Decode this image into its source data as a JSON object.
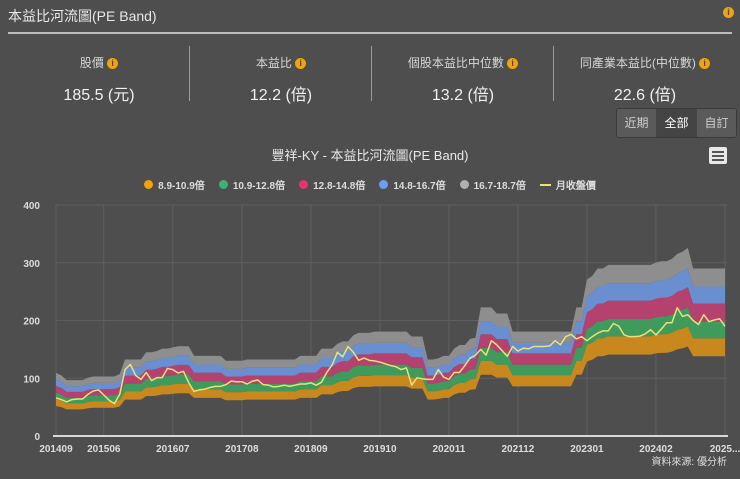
{
  "header": {
    "title": "本益比河流圖(PE Band)",
    "info_icon": "info-icon"
  },
  "stats": [
    {
      "label": "股價",
      "value": "185.5 (元)"
    },
    {
      "label": "本益比",
      "value": "12.2 (倍)"
    },
    {
      "label": "個股本益比中位數",
      "value": "13.2 (倍)"
    },
    {
      "label": "同產業本益比(中位數)",
      "value": "22.6 (倍)"
    }
  ],
  "range_buttons": [
    {
      "label": "近期"
    },
    {
      "label": "全部",
      "active": true
    },
    {
      "label": "自訂"
    }
  ],
  "colors": {
    "accent": "#f0a30a",
    "line": "#e8e27a",
    "bands": [
      "#c8881e",
      "#3f9a5c",
      "#b5416e",
      "#6a8fd0",
      "#8e8e8e"
    ],
    "legend_dots": [
      "#f0a30a",
      "#3cb371",
      "#e8336f",
      "#6f9cf0",
      "#b0b0b0"
    ]
  },
  "chart_data": {
    "type": "area",
    "title": "豐祥-KY - 本益比河流圖(PE Band)",
    "legend": [
      "8.9-10.9倍",
      "10.9-12.8倍",
      "12.8-14.8倍",
      "14.8-16.7倍",
      "16.7-18.7倍",
      "月收盤價"
    ],
    "legend_position": "top",
    "pe_multiples": [
      8.9,
      10.9,
      12.8,
      14.8,
      16.7,
      18.7
    ],
    "x_start": "201409",
    "x_end": "202503",
    "x_frequency": "monthly",
    "x_ticks": [
      "201409",
      "201506",
      "201607",
      "201708",
      "201809",
      "201910",
      "202011",
      "202112",
      "202301",
      "202402",
      "2025..."
    ],
    "y_ticks": [
      "0",
      "100",
      "200",
      "300",
      "400"
    ],
    "ylim": [
      0,
      400
    ],
    "grid": true,
    "pe_8_9x_price": [
      52,
      50,
      46,
      46,
      46,
      46,
      48,
      49,
      49,
      49,
      49,
      49,
      51,
      63,
      63,
      63,
      63,
      69,
      69,
      70,
      72,
      72,
      73,
      74,
      74,
      74,
      66,
      66,
      66,
      66,
      66,
      66,
      62,
      62,
      62,
      62,
      63,
      63,
      63,
      63,
      63,
      63,
      63,
      63,
      63,
      63,
      66,
      66,
      66,
      66,
      72,
      72,
      72,
      76,
      78,
      78,
      83,
      85,
      85,
      85,
      86,
      86,
      86,
      86,
      86,
      86,
      86,
      82,
      82,
      82,
      63,
      63,
      64,
      66,
      66,
      72,
      75,
      75,
      80,
      81,
      106,
      106,
      106,
      101,
      101,
      101,
      86,
      86,
      86,
      86,
      86,
      86,
      86,
      86,
      86,
      86,
      86,
      86,
      106,
      106,
      129,
      132,
      138,
      138,
      141,
      141,
      141,
      141,
      141,
      141,
      141,
      141,
      141,
      143,
      144,
      144,
      146,
      150,
      152,
      155,
      138,
      138,
      138,
      138,
      138,
      138,
      138
    ],
    "monthly_close": [
      66,
      63,
      59,
      63,
      64,
      64,
      72,
      78,
      80,
      71,
      62,
      56,
      72,
      115,
      124,
      105,
      98,
      110,
      96,
      101,
      101,
      117,
      115,
      109,
      112,
      92,
      77,
      80,
      81,
      84,
      86,
      86,
      89,
      95,
      94,
      94,
      90,
      95,
      97,
      89,
      88,
      85,
      86,
      88,
      86,
      88,
      90,
      90,
      92,
      88,
      93,
      110,
      123,
      145,
      137,
      155,
      145,
      131,
      135,
      131,
      130,
      128,
      125,
      122,
      120,
      115,
      118,
      88,
      101,
      99,
      98,
      98,
      115,
      102,
      98,
      110,
      110,
      122,
      135,
      140,
      150,
      140,
      165,
      158,
      148,
      138,
      155,
      147,
      152,
      151,
      155,
      155,
      155,
      156,
      165,
      158,
      172,
      176,
      168,
      172,
      165,
      172,
      178,
      182,
      182,
      195,
      190,
      175,
      172,
      172,
      173,
      177,
      184,
      175,
      185,
      196,
      196,
      222,
      207,
      210,
      200,
      193,
      210,
      198,
      201,
      203,
      190
    ],
    "source": "資料來源: 優分析"
  }
}
